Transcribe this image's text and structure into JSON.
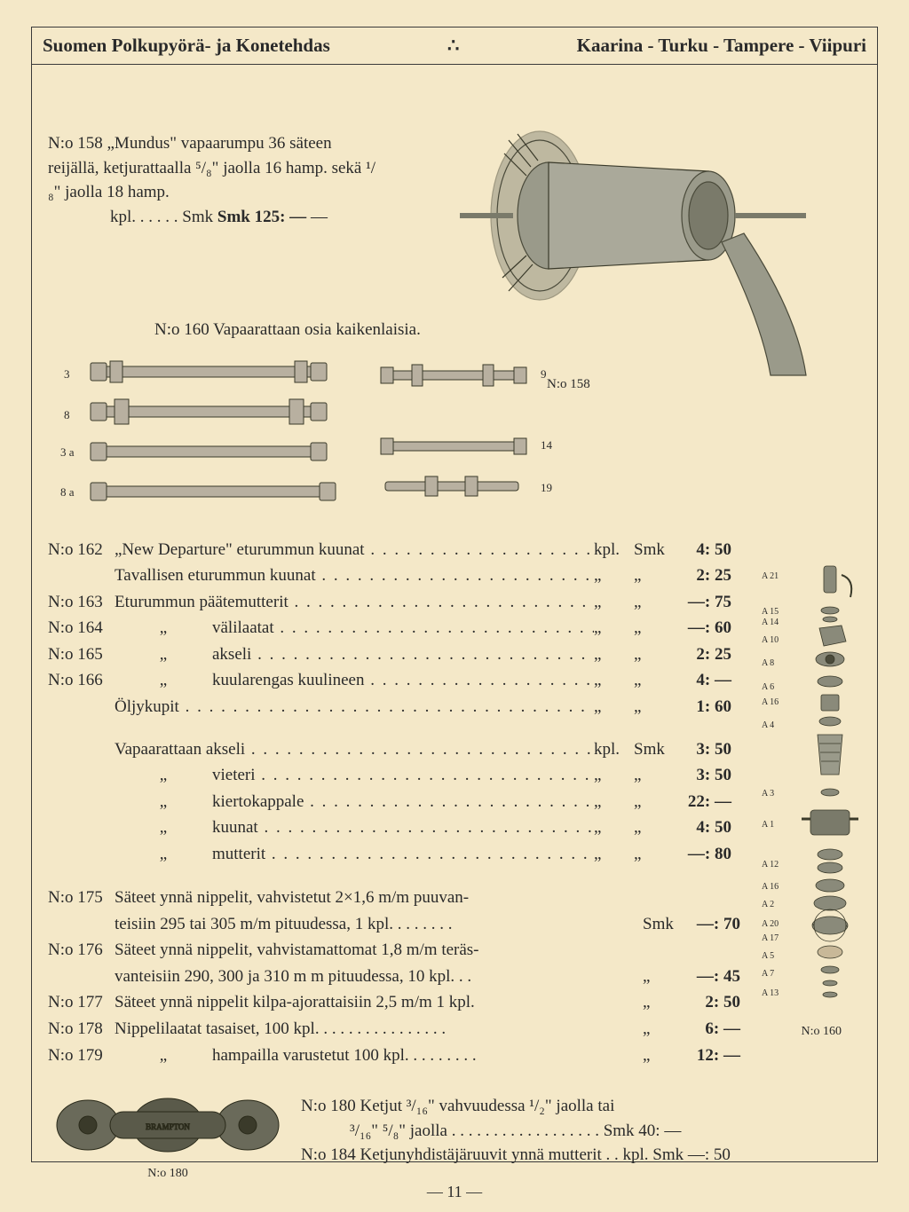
{
  "header": {
    "left": "Suomen Polkupyörä- ja Konetehdas",
    "dots": "∴",
    "right": "Kaarina - Turku - Tampere - Viipuri"
  },
  "item158": {
    "num": "N:o 158",
    "text": "„Mundus\" vapaarumpu 36 säteen reijällä, ketjurattaalla ⁵/₈\" jaolla 16 hamp. sekä ¹/₈\" jaolla 18 hamp.",
    "price_label": "kpl.",
    "price_dots": ". . . . .",
    "price": "Smk 125: —",
    "caption": "N:o 158"
  },
  "item160": {
    "text": "N:o 160 Vapaarattaan osia kaikenlaisia."
  },
  "axle_labels": [
    "3",
    "8",
    "3 a",
    "8 a",
    "9",
    "14",
    "19"
  ],
  "price_list1": [
    {
      "num": "N:o 162",
      "desc": "„New Departure\" eturummun kuunat",
      "unit": "kpl.",
      "smk": "Smk",
      "val": "4: 50"
    },
    {
      "num": "",
      "desc": "Tavallisen eturummun kuunat",
      "unit": "„",
      "smk": "„",
      "val": "2: 25"
    },
    {
      "num": "N:o 163",
      "desc": "Eturummun päätemutterit",
      "unit": "„",
      "smk": "„",
      "val": "—: 75"
    },
    {
      "num": "N:o 164",
      "indent": "„",
      "desc": "välilaatat",
      "unit": "„",
      "smk": "„",
      "val": "—: 60"
    },
    {
      "num": "N:o 165",
      "indent": "„",
      "desc": "akseli",
      "unit": "„",
      "smk": "„",
      "val": "2: 25"
    },
    {
      "num": "N:o 166",
      "indent": "„",
      "desc": "kuularengas kuulineen",
      "unit": "„",
      "smk": "„",
      "val": "4: —"
    },
    {
      "num": "",
      "desc": "Öljykupit",
      "unit": "„",
      "smk": "„",
      "val": "1: 60"
    }
  ],
  "price_list2": [
    {
      "num": "",
      "desc": "Vapaarattaan akseli",
      "unit": "kpl.",
      "smk": "Smk",
      "val": "3: 50"
    },
    {
      "num": "",
      "indent": "„",
      "desc": "vieteri",
      "unit": "„",
      "smk": "„",
      "val": "3: 50"
    },
    {
      "num": "",
      "indent": "„",
      "desc": "kiertokappale",
      "unit": "„",
      "smk": "„",
      "val": "22: —"
    },
    {
      "num": "",
      "indent": "„",
      "desc": "kuunat",
      "unit": "„",
      "smk": "„",
      "val": "4: 50"
    },
    {
      "num": "",
      "indent": "„",
      "desc": "mutterit",
      "unit": "„",
      "smk": "„",
      "val": "—: 80"
    }
  ],
  "spokes": [
    {
      "num": "N:o 175",
      "lines": [
        "Säteet ynnä nippelit, vahvistetut 2×1,6 m/m puuvan-",
        "teisiin 295 tai 305 m/m pituudessa, 1 kpl. . . . . . . ."
      ],
      "smk": "Smk",
      "val": "—: 70"
    },
    {
      "num": "N:o 176",
      "lines": [
        "Säteet ynnä nippelit, vahvistamattomat 1,8 m/m teräs-",
        "vanteisiin 290, 300 ja 310 m m pituudessa, 10 kpl. . ."
      ],
      "smk": "„",
      "val": "—: 45"
    },
    {
      "num": "N:o 177",
      "lines": [
        "Säteet ynnä nippelit kilpa-ajorattaisiin 2,5 m/m 1 kpl."
      ],
      "smk": "„",
      "val": "2: 50"
    },
    {
      "num": "N:o 178",
      "lines": [
        "Nippelilaatat tasaiset, 100 kpl. . . . . . . . . . . . . . . ."
      ],
      "smk": "„",
      "val": "6: —"
    },
    {
      "num": "N:o 179",
      "indent": "„",
      "lines": [
        "hampailla varustetut 100 kpl. . . . . . . . ."
      ],
      "smk": "„",
      "val": "12: —"
    }
  ],
  "chain": {
    "line1_num": "N:o 180",
    "line1": "Ketjut ³/₁₆\" vahvuudessa ¹/₂\" jaolla tai",
    "line2": "³/₁₆\" ⁵/₈\" jaolla . . . . . . . . . . . . . . . . . . Smk 40: —",
    "line3_num": "N:o 184",
    "line3": "Ketjunyhdistäjäruuvit ynnä mutterit . . kpl. Smk —: 50",
    "caption": "N:o 180"
  },
  "exploded_caption": "N:o 160",
  "exploded_labels": [
    "A 21",
    "A 15",
    "A 14",
    "A 10",
    "A 8",
    "A 6",
    "A 16",
    "A 4",
    "A 3",
    "A 1",
    "A 12",
    "A 16",
    "A 2",
    "A 20",
    "A 17",
    "A 5",
    "A 7",
    "A 13"
  ],
  "page_number": "— 11 —",
  "colors": {
    "bg": "#f4e8c8",
    "ink": "#2a2a2a",
    "illustration": "#6a6a5a"
  }
}
